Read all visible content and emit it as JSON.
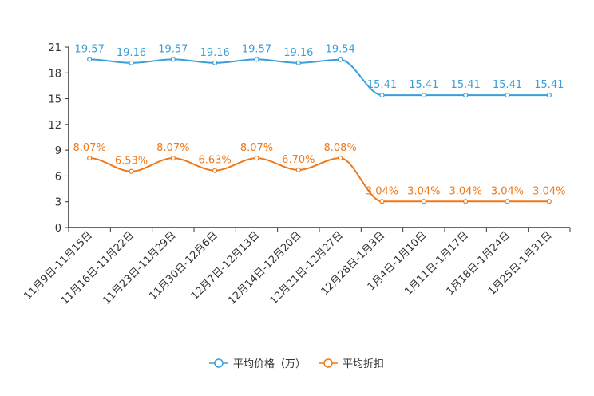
{
  "chart_data": {
    "type": "line",
    "title": "",
    "xlabel": "",
    "ylabel": "",
    "ylim": [
      0,
      21
    ],
    "yticks": [
      0,
      3,
      6,
      9,
      12,
      15,
      18,
      21
    ],
    "grid": false,
    "legend_position": "bottom-center",
    "categories": [
      "11月9日-11月15日",
      "11月16日-11月22日",
      "11月23日-11月29日",
      "11月30日-12月6日",
      "12月7日-12月13日",
      "12月14日-12月20日",
      "12月21日-12月27日",
      "12月28日-1月3日",
      "1月4日-1月10日",
      "1月11日-1月17日",
      "1月18日-1月24日",
      "1月25日-1月31日"
    ],
    "series": [
      {
        "name": "平均价格（万）",
        "color": "#3a9fd8",
        "values": [
          19.57,
          19.16,
          19.57,
          19.16,
          19.57,
          19.16,
          19.54,
          15.41,
          15.41,
          15.41,
          15.41,
          15.41
        ],
        "labels": [
          "19.57",
          "19.16",
          "19.57",
          "19.16",
          "19.57",
          "19.16",
          "19.54",
          "15.41",
          "15.41",
          "15.41",
          "15.41",
          "15.41"
        ]
      },
      {
        "name": "平均折扣",
        "color": "#f07818",
        "values": [
          8.07,
          6.53,
          8.07,
          6.63,
          8.07,
          6.7,
          8.08,
          3.04,
          3.04,
          3.04,
          3.04,
          3.04
        ],
        "labels": [
          "8.07%",
          "6.53%",
          "8.07%",
          "6.63%",
          "8.07%",
          "6.70%",
          "8.08%",
          "3.04%",
          "3.04%",
          "3.04%",
          "3.04%",
          "3.04%"
        ]
      }
    ]
  }
}
